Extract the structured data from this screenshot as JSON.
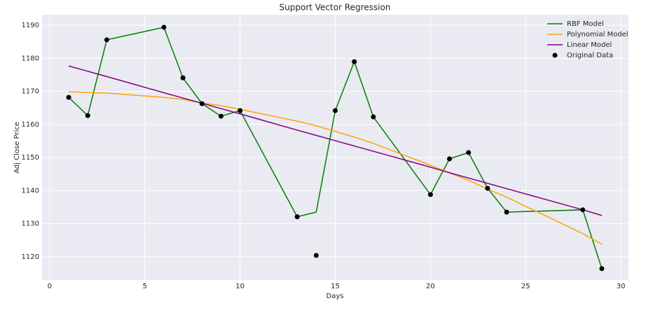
{
  "chart_data": {
    "type": "line",
    "title": "Support Vector Regression",
    "x_label": "Days",
    "y_label": "Adj Close Price",
    "x": [
      1,
      2,
      3,
      6,
      7,
      8,
      9,
      10,
      13,
      14,
      15,
      16,
      17,
      20,
      21,
      22,
      23,
      24,
      28,
      29
    ],
    "series": [
      {
        "name": "RBF Model",
        "color": "#008000",
        "kind": "line",
        "values": [
          1168.2,
          1162.7,
          1185.6,
          1189.4,
          1174.1,
          1166.3,
          1162.5,
          1164.2,
          1132.1,
          1133.5,
          1164.2,
          1179.0,
          1162.3,
          1138.8,
          1149.6,
          1151.5,
          1140.7,
          1133.5,
          1134.2,
          1116.4
        ]
      },
      {
        "name": "Polynomial Model",
        "color": "#ffa500",
        "kind": "line",
        "values": [
          1169.9,
          1169.7,
          1169.5,
          1168.2,
          1167.6,
          1166.5,
          1165.7,
          1164.6,
          1161.0,
          1159.6,
          1157.9,
          1156.2,
          1154.3,
          1147.7,
          1145.4,
          1143.1,
          1140.5,
          1138.0,
          1127.0,
          1123.8
        ]
      },
      {
        "name": "Linear Model",
        "color": "#800080",
        "kind": "line",
        "values": [
          1177.7,
          1176.1,
          1174.5,
          1169.6,
          1168.0,
          1166.4,
          1164.8,
          1163.2,
          1158.3,
          1156.7,
          1155.1,
          1153.5,
          1151.9,
          1147.1,
          1145.4,
          1143.8,
          1142.2,
          1140.6,
          1134.2,
          1132.5
        ]
      },
      {
        "name": "Original Data",
        "color": "#000000",
        "kind": "scatter",
        "values": [
          1168.2,
          1162.7,
          1185.6,
          1189.4,
          1174.1,
          1166.3,
          1162.5,
          1164.2,
          1132.1,
          1120.4,
          1164.2,
          1179.0,
          1162.3,
          1138.8,
          1149.6,
          1151.5,
          1140.7,
          1133.5,
          1134.2,
          1116.4
        ]
      }
    ],
    "xlim": [
      -0.4,
      30.4
    ],
    "ylim": [
      1113.0,
      1193.2
    ],
    "xticks": [
      0,
      5,
      10,
      15,
      20,
      25,
      30
    ],
    "yticks": [
      1120,
      1130,
      1140,
      1150,
      1160,
      1170,
      1180,
      1190
    ],
    "grid": true,
    "legend": "upper right"
  }
}
